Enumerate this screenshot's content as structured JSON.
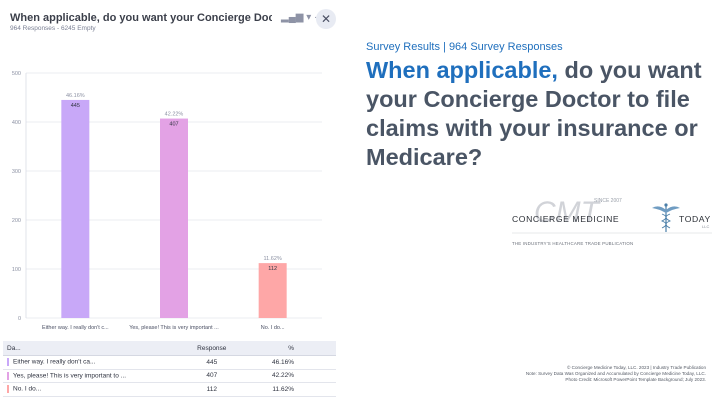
{
  "panel": {
    "title": "When applicable, do you want your Concierge Doctor to file ...",
    "subtitle": "964 Responses - 6245 Empty",
    "controls_text": "▂▄▆ ▾ ·",
    "close_glyph": "✕"
  },
  "chart_data": {
    "type": "bar",
    "categories": [
      "Either way. I really don't c...",
      "Yes, please! This is very important ...",
      "No. I do..."
    ],
    "values": [
      445,
      407,
      112
    ],
    "percent_labels": [
      "46.16%",
      "42.22%",
      "11.62%"
    ],
    "colors": [
      "#c8a8f8",
      "#e3a2e5",
      "#fea7a7"
    ],
    "ylim": [
      0,
      500
    ],
    "yticks": [
      0,
      100,
      200,
      300,
      400,
      500
    ],
    "grid": true
  },
  "table": {
    "headers": [
      "Da...",
      "Response",
      "%"
    ],
    "rows": [
      {
        "label": "Either way. I really don't ca...",
        "response": "445",
        "percent": "46.16%",
        "color": "#c8a8f8"
      },
      {
        "label": "Yes, please! This is very important to ...",
        "response": "407",
        "percent": "42.22%",
        "color": "#e3a2e5"
      },
      {
        "label": "No. I do...",
        "response": "112",
        "percent": "11.62%",
        "color": "#fea7a7"
      }
    ]
  },
  "slide": {
    "kicker": "Survey Results | 964 Survey Responses",
    "title_highlight": "When applicable,",
    "title_rest": " do you want your Concierge Doctor to file claims with your insurance or Medicare?",
    "accent_color": "#1f6fbd",
    "title_color": "#4a5565"
  },
  "logo": {
    "monogram": "CMT",
    "since": "SINCE 2007",
    "name_left": "CONCIERGE MEDICINE",
    "name_right": "TODAY",
    "llc": "LLC",
    "tagline": "THE INDUSTRY'S HEALTHCARE TRADE PUBLICATION",
    "icon": "caduceus-icon"
  },
  "footer": {
    "line1": "© Concierge Medicine Today, LLC. 2023 | Industry Trade Publication",
    "line2": "Note: Survey Data Was Organized and Accumulated by Concierge Medicine Today, LLC.",
    "line3": "Photo Credit: Microsoft PowerPoint Template Background; July 2023."
  }
}
